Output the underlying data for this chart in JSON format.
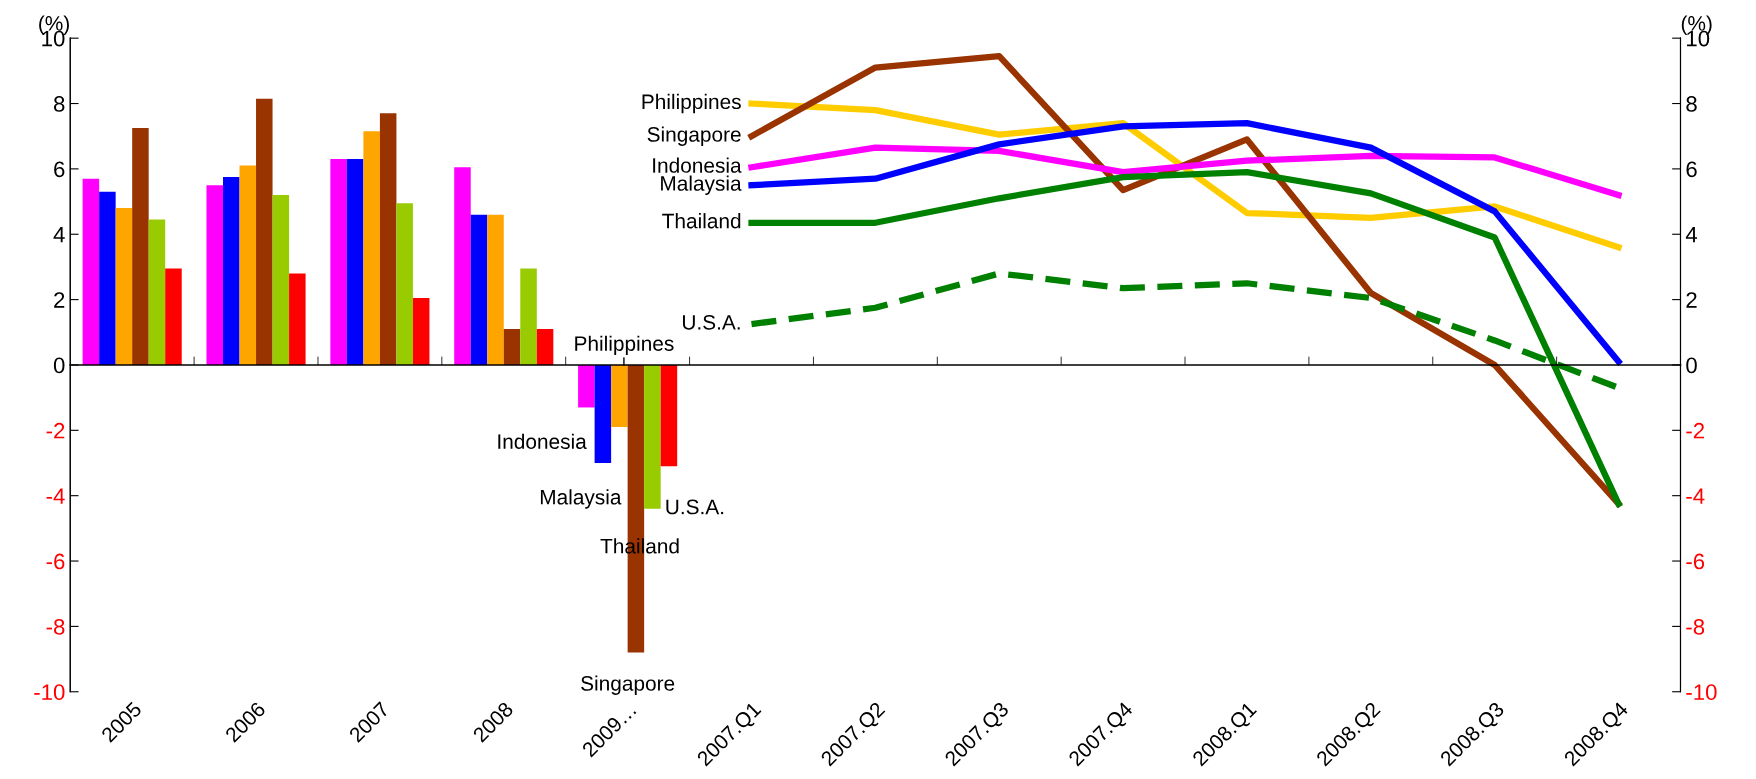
{
  "chart_data": {
    "type": "bar",
    "ylabel": "(%)",
    "y2label": "(%)",
    "categories": [
      "2005",
      "2006",
      "2007",
      "2008",
      "2009…",
      "2007.Q1",
      "2007.Q2",
      "2007.Q3",
      "2007.Q4",
      "2008.Q1",
      "2008.Q2",
      "2008.Q3",
      "2008.Q4"
    ],
    "ylim": [
      -10,
      10
    ],
    "yticks": [
      -10,
      -8,
      -6,
      -4,
      -2,
      0,
      2,
      4,
      6,
      8,
      10
    ],
    "y2lim": [
      -10,
      10
    ],
    "y2ticks": [
      -10,
      -8,
      -6,
      -4,
      -2,
      0,
      2,
      4,
      6,
      8,
      10
    ],
    "legend": false,
    "series": [
      {
        "color": "#ff00ff",
        "values": [
          5.7,
          5.5,
          6.3,
          6.05,
          -1.3,
          null,
          null,
          null,
          null,
          null,
          null,
          null,
          null
        ]
      },
      {
        "color": "#0000ff",
        "values": [
          5.3,
          5.75,
          6.3,
          4.6,
          -3.0,
          null,
          null,
          null,
          null,
          null,
          null,
          null,
          null
        ]
      },
      {
        "color": "#ffa500",
        "values": [
          4.8,
          6.1,
          7.15,
          4.6,
          -1.9,
          null,
          null,
          null,
          null,
          null,
          null,
          null,
          null
        ]
      },
      {
        "color": "#993300",
        "values": [
          7.25,
          8.15,
          7.7,
          1.1,
          -8.8,
          null,
          null,
          null,
          null,
          null,
          null,
          null,
          null
        ]
      },
      {
        "color": "#99cc00",
        "values": [
          4.45,
          5.2,
          4.95,
          2.95,
          -4.4,
          null,
          null,
          null,
          null,
          null,
          null,
          null,
          null
        ]
      },
      {
        "color": "#ff0000",
        "values": [
          2.95,
          2.8,
          2.05,
          1.1,
          -3.1,
          null,
          null,
          null,
          null,
          null,
          null,
          null,
          null
        ]
      },
      {
        "type": "line",
        "axis": "y2",
        "name": "Philippines",
        "color": "#ffcc00",
        "line_style": "solid",
        "values": [
          null,
          null,
          null,
          null,
          null,
          8.0,
          7.8,
          7.05,
          7.4,
          4.65,
          4.5,
          4.85,
          3.6
        ]
      },
      {
        "type": "line",
        "axis": "y2",
        "name": "Singapore",
        "color": "#993300",
        "line_style": "solid",
        "values": [
          null,
          null,
          null,
          null,
          null,
          7.0,
          9.1,
          9.45,
          5.35,
          6.9,
          2.2,
          0,
          -4.25
        ]
      },
      {
        "type": "line",
        "axis": "y2",
        "name": "Indonesia",
        "color": "#ff00ff",
        "line_style": "solid",
        "values": [
          null,
          null,
          null,
          null,
          null,
          6.05,
          6.65,
          6.55,
          5.9,
          6.25,
          6.4,
          6.35,
          5.2
        ]
      },
      {
        "type": "line",
        "axis": "y2",
        "name": "Malaysia",
        "color": "#0000ff",
        "line_style": "solid",
        "values": [
          null,
          null,
          null,
          null,
          null,
          5.5,
          5.7,
          6.75,
          7.3,
          7.4,
          6.65,
          4.7,
          0.1
        ]
      },
      {
        "type": "line",
        "axis": "y2",
        "name": "Thailand",
        "color": "#008000",
        "line_style": "solid",
        "values": [
          null,
          null,
          null,
          null,
          null,
          4.35,
          4.35,
          5.1,
          5.75,
          5.9,
          5.25,
          3.9,
          -4.25
        ]
      },
      {
        "type": "line",
        "axis": "y2",
        "name": "U.S.A.",
        "color": "#008000",
        "line_style": "dashed",
        "values": [
          null,
          null,
          null,
          null,
          null,
          1.25,
          1.75,
          2.8,
          2.35,
          2.5,
          2.05,
          0.75,
          -0.7
        ]
      }
    ],
    "annotations": [
      {
        "text": "Philippines",
        "x": "2009…",
        "y": 0
      },
      {
        "text": "Indonesia",
        "x": "2009…",
        "y": -1.3
      },
      {
        "text": "Malaysia",
        "x": "2009…",
        "y": -3.0
      },
      {
        "text": "U.S.A.",
        "x": "2009…",
        "y": -4.4
      },
      {
        "text": "Thailand",
        "x": "2009…",
        "y": -5.6
      },
      {
        "text": "Singapore",
        "x": "2009…",
        "y": -8.8
      }
    ]
  }
}
